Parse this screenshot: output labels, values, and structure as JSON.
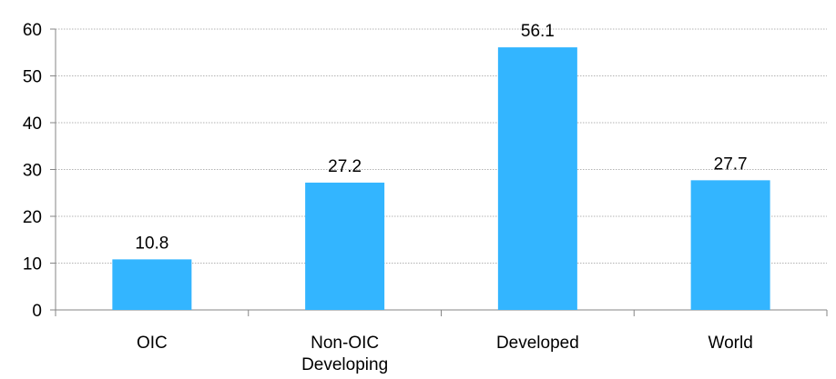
{
  "chart_data": {
    "type": "bar",
    "categories": [
      "OIC",
      "Non-OIC Developing",
      "Developed",
      "World"
    ],
    "category_label_lines": [
      [
        "OIC"
      ],
      [
        "Non-OIC",
        "Developing"
      ],
      [
        "Developed"
      ],
      [
        "World"
      ]
    ],
    "values": [
      10.8,
      27.2,
      56.1,
      27.7
    ],
    "data_labels": [
      "10.8",
      "27.2",
      "56.1",
      "27.7"
    ],
    "y_ticks": [
      0,
      10,
      20,
      30,
      40,
      50,
      60
    ],
    "ylim": [
      0,
      60
    ],
    "title": "",
    "xlabel": "",
    "ylabel": "",
    "grid": true,
    "legend": "none",
    "bar_color": "#33B5FF",
    "grid_color": "#B3B3B3",
    "axis_color": "#868686"
  }
}
